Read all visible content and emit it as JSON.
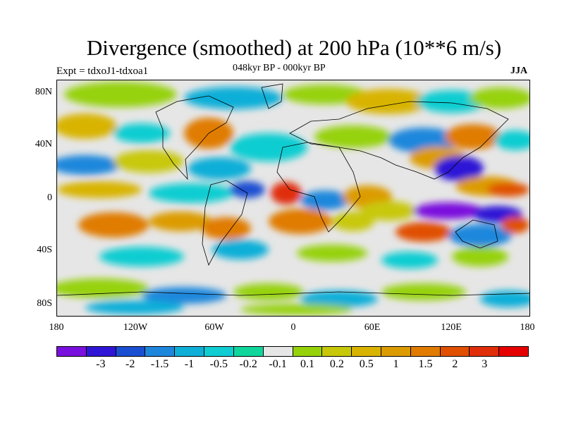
{
  "title": "Divergence (smoothed) at 200 hPa (10**6 m/s)",
  "subtitle_left": "Expt = tdxoJ1-tdxoa1",
  "subtitle_center": "048kyr BP - 000kyr BP",
  "subtitle_right": "JJA",
  "lat_labels": [
    "80N",
    "40N",
    "0",
    "40S",
    "80S"
  ],
  "lon_labels": [
    "180",
    "120W",
    "60W",
    "0",
    "60E",
    "120E",
    "180"
  ],
  "colorbar": {
    "colors": [
      "#7a10dd",
      "#2f16d6",
      "#1b4fd2",
      "#1e87dc",
      "#0fafd8",
      "#10cdd2",
      "#10d69c",
      "#e6e6e6",
      "#96d20a",
      "#c8c80a",
      "#d8b400",
      "#dc9b00",
      "#e07b00",
      "#e05000",
      "#e02e0a",
      "#e60000"
    ],
    "labels": [
      "-3",
      "-2",
      "-1.5",
      "-1",
      "-0.5",
      "-0.2",
      "-0.1",
      "0.1",
      "0.2",
      "0.5",
      "1",
      "1.5",
      "2",
      "3"
    ]
  }
}
